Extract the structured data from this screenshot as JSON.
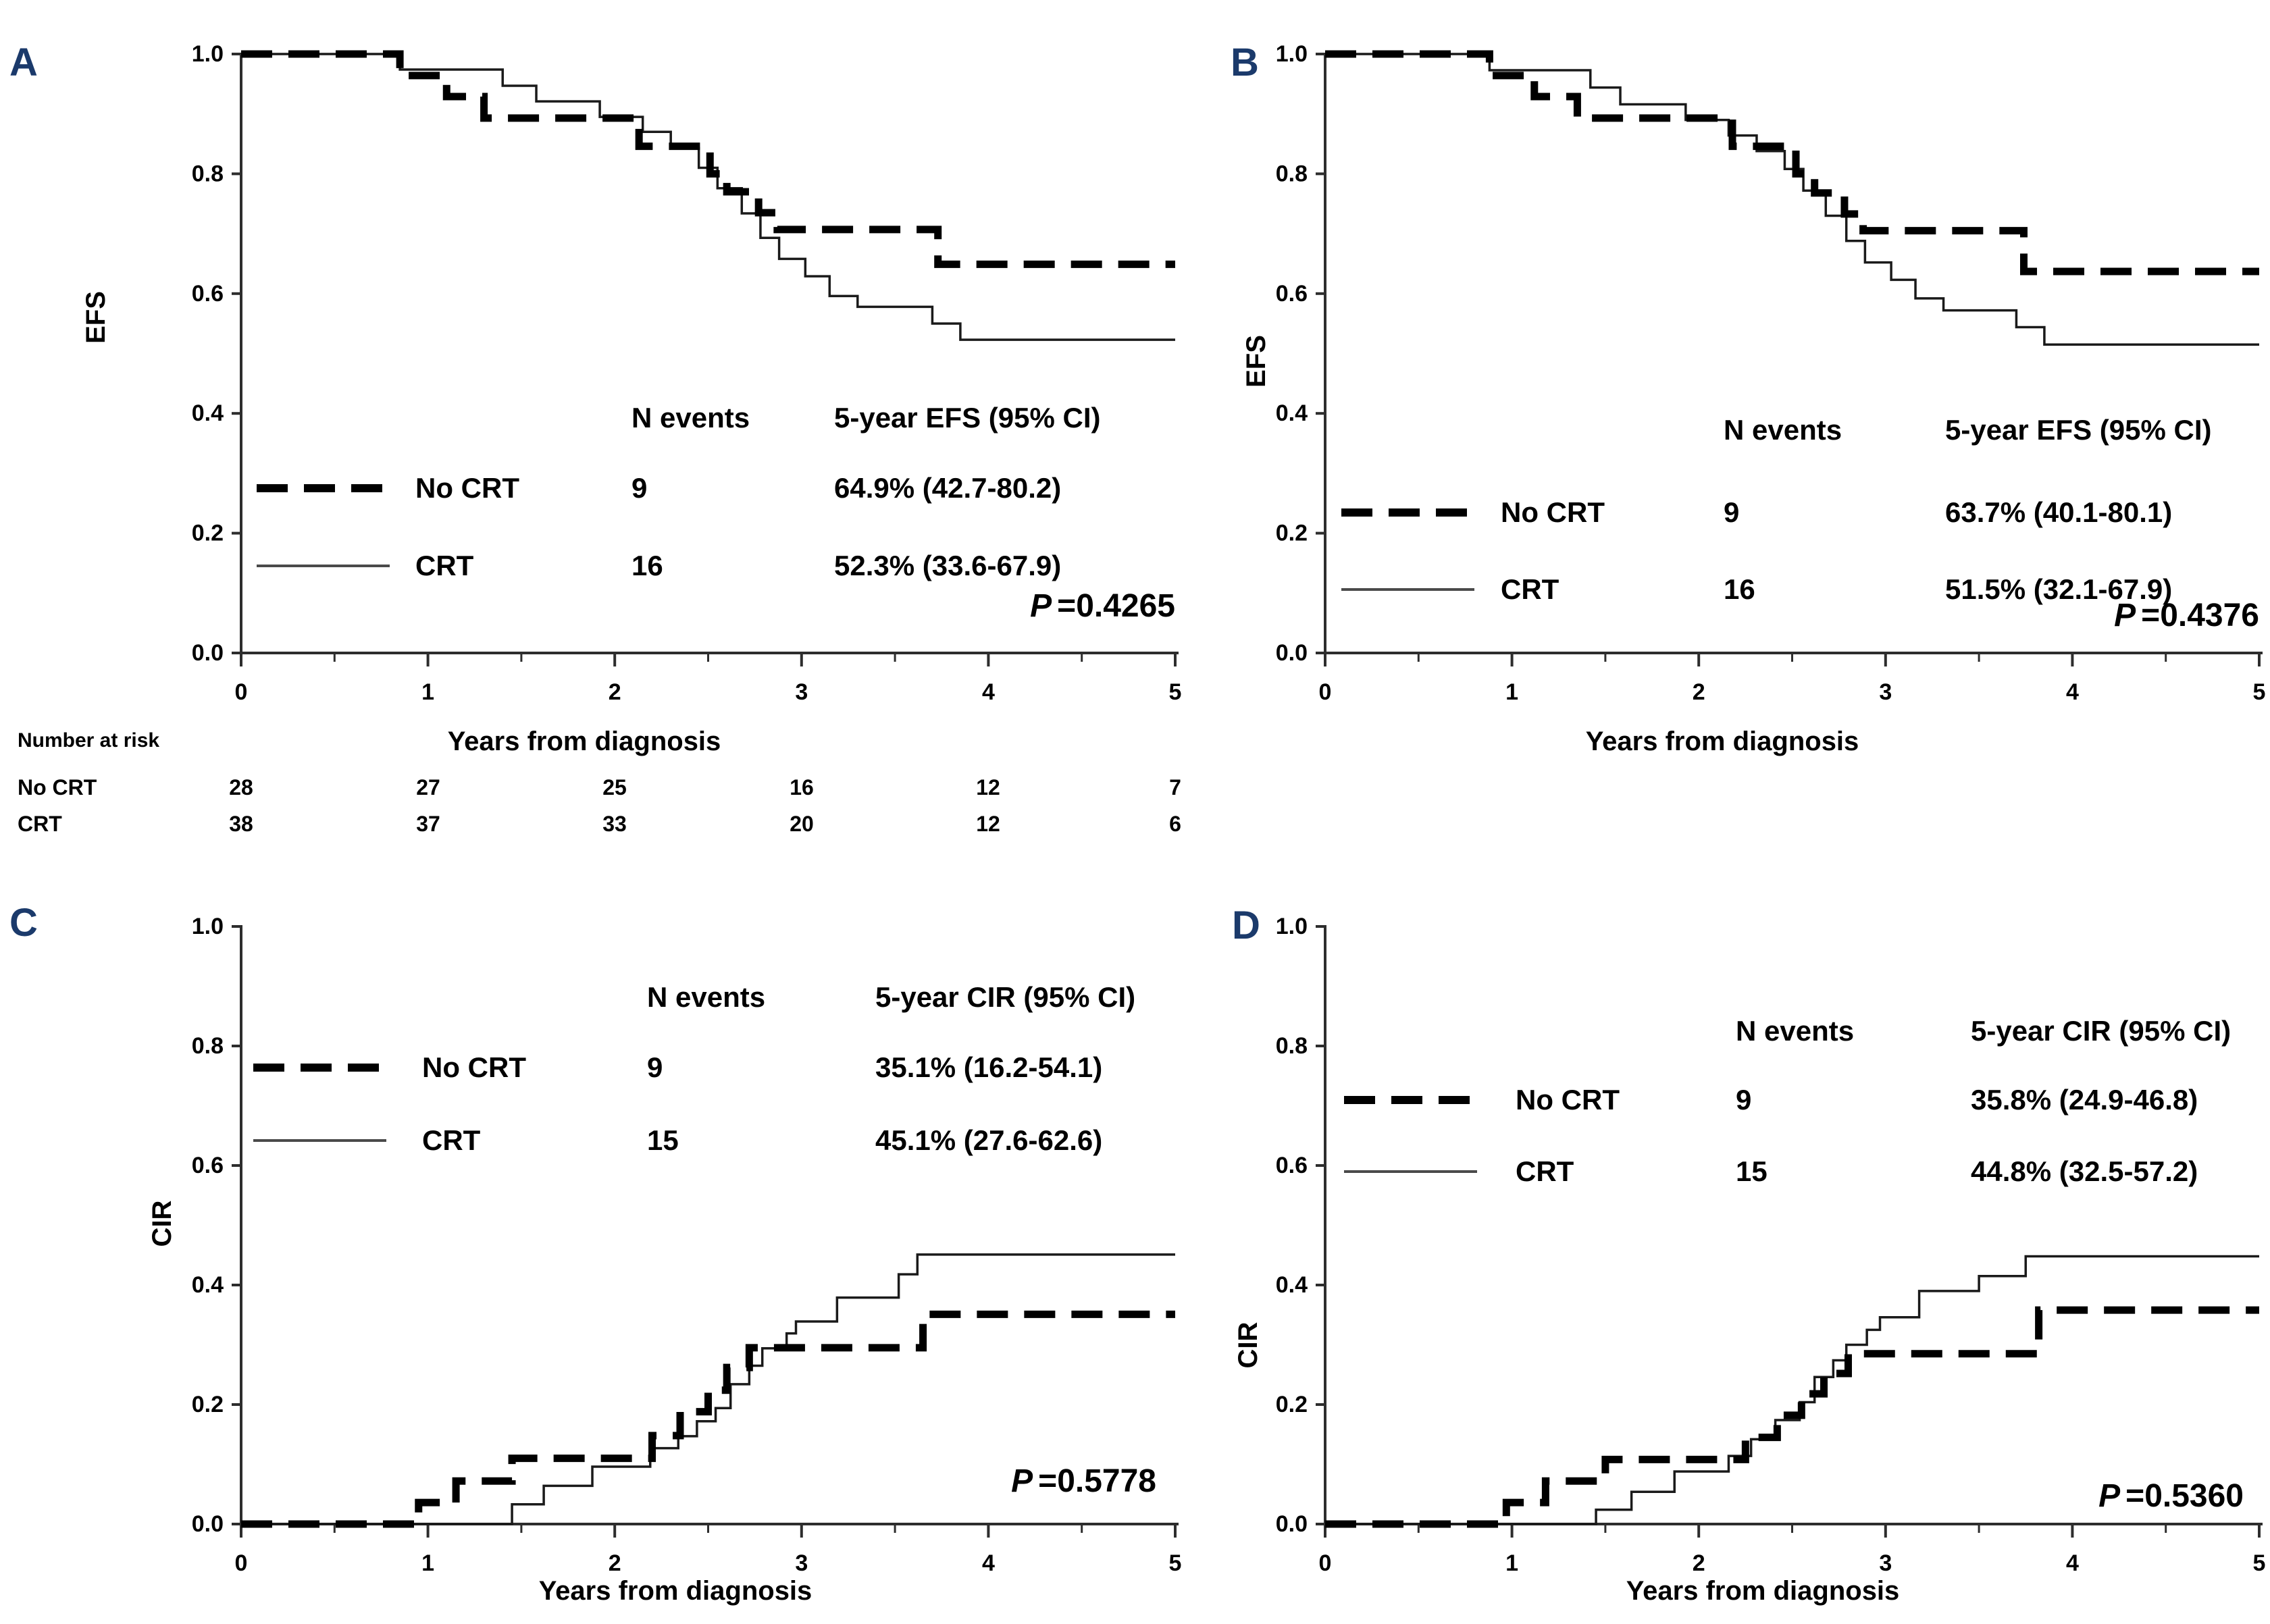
{
  "figure": {
    "background": "#ffffff",
    "panel_letter_color": "#1b3a6b",
    "curve_color": "#000000",
    "axis_color": "#2d2d2d"
  },
  "number_at_risk": {
    "title": "Number at risk",
    "rows": [
      {
        "label": "No CRT",
        "values": [
          "28",
          "27",
          "25",
          "16",
          "12",
          "7"
        ]
      },
      {
        "label": "CRT",
        "values": [
          "38",
          "37",
          "33",
          "20",
          "12",
          "6"
        ]
      }
    ]
  },
  "chart_data": [
    {
      "panel": "A",
      "type": "line",
      "subtype": "kaplan-meier-step",
      "xlabel": "Years from diagnosis",
      "ylabel": "EFS",
      "xlim": [
        0,
        5
      ],
      "ylim": [
        0.0,
        1.0
      ],
      "x_ticks": [
        0,
        1,
        2,
        3,
        4,
        5
      ],
      "x_minor_tick_step": 0.5,
      "y_ticks": [
        0.0,
        0.2,
        0.4,
        0.6,
        0.8,
        1.0
      ],
      "grid": false,
      "legend": {
        "col_events": "N events",
        "col_estimate": "5-year EFS (95% CI)"
      },
      "p_italic": "P",
      "p_rest": "=0.4265",
      "series": [
        {
          "name": "No CRT",
          "line": "dashed",
          "n_events": "9",
          "five_year_estimate": "64.9% (42.7-80.2)",
          "start": 1.0,
          "steps": [
            [
              0.85,
              0.964
            ],
            [
              1.1,
              0.929
            ],
            [
              1.3,
              0.893
            ],
            [
              2.13,
              0.846
            ],
            [
              2.51,
              0.8
            ],
            [
              2.6,
              0.77
            ],
            [
              2.77,
              0.735
            ],
            [
              2.87,
              0.707
            ],
            [
              3.73,
              0.649
            ]
          ]
        },
        {
          "name": "CRT",
          "line": "solid",
          "n_events": "16",
          "five_year_estimate": "52.3% (33.6-67.9)",
          "start": 1.0,
          "steps": [
            [
              0.85,
              0.974
            ],
            [
              1.4,
              0.947
            ],
            [
              1.58,
              0.921
            ],
            [
              1.92,
              0.895
            ],
            [
              2.15,
              0.87
            ],
            [
              2.3,
              0.843
            ],
            [
              2.45,
              0.81
            ],
            [
              2.55,
              0.776
            ],
            [
              2.68,
              0.734
            ],
            [
              2.78,
              0.693
            ],
            [
              2.88,
              0.658
            ],
            [
              3.02,
              0.629
            ],
            [
              3.15,
              0.596
            ],
            [
              3.3,
              0.578
            ],
            [
              3.7,
              0.55
            ],
            [
              3.85,
              0.523
            ]
          ]
        }
      ]
    },
    {
      "panel": "B",
      "type": "line",
      "subtype": "kaplan-meier-step",
      "xlabel": "Years from diagnosis",
      "ylabel": "EFS",
      "xlim": [
        0,
        5
      ],
      "ylim": [
        0.0,
        1.0
      ],
      "x_ticks": [
        0,
        1,
        2,
        3,
        4,
        5
      ],
      "x_minor_tick_step": 0.5,
      "y_ticks": [
        0.0,
        0.2,
        0.4,
        0.6,
        0.8,
        1.0
      ],
      "grid": false,
      "legend": {
        "col_events": "N events",
        "col_estimate": "5-year EFS (95% CI)"
      },
      "p_italic": "P",
      "p_rest": "=0.4376",
      "series": [
        {
          "name": "No CRT",
          "line": "dashed",
          "n_events": "9",
          "five_year_estimate": "63.7% (40.1-80.1)",
          "start": 1.0,
          "steps": [
            [
              0.88,
              0.964
            ],
            [
              1.12,
              0.929
            ],
            [
              1.35,
              0.893
            ],
            [
              2.18,
              0.846
            ],
            [
              2.52,
              0.8
            ],
            [
              2.62,
              0.768
            ],
            [
              2.78,
              0.733
            ],
            [
              2.88,
              0.705
            ],
            [
              3.74,
              0.637
            ]
          ]
        },
        {
          "name": "CRT",
          "line": "solid",
          "n_events": "16",
          "five_year_estimate": "51.5% (32.1-67.9)",
          "start": 1.0,
          "steps": [
            [
              0.88,
              0.973
            ],
            [
              1.42,
              0.944
            ],
            [
              1.58,
              0.916
            ],
            [
              1.93,
              0.89
            ],
            [
              2.16,
              0.864
            ],
            [
              2.31,
              0.838
            ],
            [
              2.46,
              0.808
            ],
            [
              2.56,
              0.772
            ],
            [
              2.68,
              0.73
            ],
            [
              2.79,
              0.688
            ],
            [
              2.89,
              0.652
            ],
            [
              3.03,
              0.623
            ],
            [
              3.16,
              0.592
            ],
            [
              3.31,
              0.572
            ],
            [
              3.7,
              0.544
            ],
            [
              3.85,
              0.515
            ]
          ]
        }
      ]
    },
    {
      "panel": "C",
      "type": "line",
      "subtype": "cumulative-incidence-step",
      "xlabel": "Years from diagnosis",
      "ylabel": "CIR",
      "xlim": [
        0,
        5
      ],
      "ylim": [
        0.0,
        1.0
      ],
      "x_ticks": [
        0,
        1,
        2,
        3,
        4,
        5
      ],
      "x_minor_tick_step": 0.5,
      "y_ticks": [
        0.0,
        0.2,
        0.4,
        0.6,
        0.8,
        1.0
      ],
      "grid": false,
      "legend": {
        "col_events": "N events",
        "col_estimate": "5-year CIR (95% CI)"
      },
      "p_italic": "P",
      "p_rest": "=0.5778",
      "series": [
        {
          "name": "No CRT",
          "line": "dashed",
          "n_events": "9",
          "five_year_estimate": "35.1% (16.2-54.1)",
          "start": 0.0,
          "steps": [
            [
              0.95,
              0.036
            ],
            [
              1.15,
              0.072
            ],
            [
              1.45,
              0.11
            ],
            [
              2.2,
              0.148
            ],
            [
              2.35,
              0.188
            ],
            [
              2.5,
              0.224
            ],
            [
              2.6,
              0.262
            ],
            [
              2.72,
              0.295
            ],
            [
              3.65,
              0.351
            ]
          ]
        },
        {
          "name": "CRT",
          "line": "solid",
          "n_events": "15",
          "five_year_estimate": "45.1% (27.6-62.6)",
          "start": 0.0,
          "steps": [
            [
              1.45,
              0.033
            ],
            [
              1.62,
              0.064
            ],
            [
              1.88,
              0.096
            ],
            [
              2.19,
              0.127
            ],
            [
              2.34,
              0.147
            ],
            [
              2.44,
              0.172
            ],
            [
              2.54,
              0.194
            ],
            [
              2.62,
              0.234
            ],
            [
              2.72,
              0.265
            ],
            [
              2.79,
              0.294
            ],
            [
              2.92,
              0.319
            ],
            [
              2.97,
              0.339
            ],
            [
              3.19,
              0.379
            ],
            [
              3.52,
              0.418
            ],
            [
              3.62,
              0.451
            ]
          ]
        }
      ]
    },
    {
      "panel": "D",
      "type": "line",
      "subtype": "cumulative-incidence-step",
      "xlabel": "Years from diagnosis",
      "ylabel": "CIR",
      "xlim": [
        0,
        5
      ],
      "ylim": [
        0.0,
        1.0
      ],
      "x_ticks": [
        0,
        1,
        2,
        3,
        4,
        5
      ],
      "x_minor_tick_step": 0.5,
      "y_ticks": [
        0.0,
        0.2,
        0.4,
        0.6,
        0.8,
        1.0
      ],
      "grid": false,
      "legend": {
        "col_events": "N events",
        "col_estimate": "5-year CIR (95% CI)"
      },
      "p_italic": "P",
      "p_rest": "=0.5360",
      "series": [
        {
          "name": "No CRT",
          "line": "dashed",
          "n_events": "9",
          "five_year_estimate": "35.8% (24.9-46.8)",
          "start": 0.0,
          "steps": [
            [
              0.97,
              0.036
            ],
            [
              1.18,
              0.072
            ],
            [
              1.5,
              0.108
            ],
            [
              2.25,
              0.145
            ],
            [
              2.42,
              0.182
            ],
            [
              2.55,
              0.218
            ],
            [
              2.67,
              0.252
            ],
            [
              2.8,
              0.285
            ],
            [
              3.82,
              0.358
            ]
          ]
        },
        {
          "name": "CRT",
          "line": "solid",
          "n_events": "15",
          "five_year_estimate": "44.8% (32.5-57.2)",
          "start": 0.0,
          "steps": [
            [
              1.45,
              0.024
            ],
            [
              1.64,
              0.054
            ],
            [
              1.87,
              0.088
            ],
            [
              2.16,
              0.114
            ],
            [
              2.28,
              0.142
            ],
            [
              2.41,
              0.174
            ],
            [
              2.54,
              0.204
            ],
            [
              2.62,
              0.246
            ],
            [
              2.72,
              0.274
            ],
            [
              2.79,
              0.3
            ],
            [
              2.9,
              0.325
            ],
            [
              2.97,
              0.346
            ],
            [
              3.18,
              0.39
            ],
            [
              3.5,
              0.415
            ],
            [
              3.75,
              0.448
            ]
          ]
        }
      ]
    }
  ]
}
